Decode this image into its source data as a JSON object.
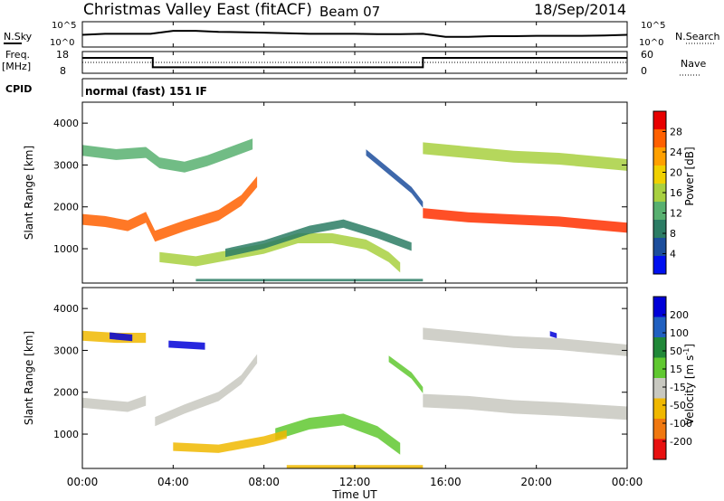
{
  "header": {
    "title": "Christmas Valley East (fitACF)",
    "beam": "Beam 07",
    "date": "18/Sep/2014"
  },
  "labels": {
    "nsky": "N.Sky",
    "nsearch": "N.Search",
    "freq": "Freq.",
    "freq_unit": "[MHz]",
    "nave": "Nave",
    "cpid": "CPID",
    "cpid_value": "normal (fast) 151 IF"
  },
  "chart_data": [
    {
      "type": "line",
      "name": "noise",
      "ylabel_left": "N.Sky",
      "ylabel_right": "N.Search",
      "yticks_left": [
        "10^5",
        "10^0"
      ],
      "yticks_right": [
        "10^5",
        "10^0"
      ],
      "x": [
        0,
        1,
        2,
        3,
        4,
        5,
        6,
        7,
        8,
        9,
        10,
        11,
        12,
        13,
        14,
        15,
        16,
        17,
        18,
        19,
        20,
        21,
        22,
        23,
        24
      ],
      "series": [
        {
          "name": "N.Sky",
          "values": [
            0.25,
            0.3,
            0.3,
            0.3,
            0.45,
            0.45,
            0.4,
            0.38,
            0.36,
            0.33,
            0.3,
            0.3,
            0.3,
            0.28,
            0.28,
            0.3,
            0.15,
            0.15,
            0.18,
            0.18,
            0.2,
            0.2,
            0.2,
            0.22,
            0.25
          ]
        }
      ]
    },
    {
      "type": "line",
      "name": "frequency",
      "ylabel_left": "Freq. [MHz]",
      "ylabel_right": "Nave",
      "yticks_left": [
        "18",
        "8"
      ],
      "yticks_right": [
        "60",
        "0"
      ],
      "series": [
        {
          "name": "Freq.",
          "steps": [
            [
              0,
              15.5
            ],
            [
              3.1,
              15.5
            ],
            [
              3.1,
              10.3
            ],
            [
              15.0,
              10.3
            ],
            [
              15.0,
              15.5
            ],
            [
              24,
              15.5
            ]
          ]
        },
        {
          "name": "Nave",
          "steps": [
            [
              0,
              30
            ],
            [
              24,
              30
            ]
          ]
        }
      ]
    },
    {
      "type": "heatmap",
      "name": "power",
      "ylabel": "Slant Range [km]",
      "ylim": [
        180,
        4500
      ],
      "yticks": [
        1000,
        2000,
        3000,
        4000
      ],
      "colorbar_label": "Power [dB]",
      "colorbar_ticks": [
        "28",
        "24",
        "20",
        "16",
        "12",
        "8",
        "4"
      ],
      "colorbar_colors": [
        "#e80000",
        "#ff6000",
        "#ffa000",
        "#f0d000",
        "#a8d040",
        "#58b070",
        "#2c7c64",
        "#1c4e9c",
        "#0010f0"
      ],
      "bands": [
        {
          "name": "lower-F-echoes",
          "pts": [
            [
              0,
              1700
            ],
            [
              1,
              1650
            ],
            [
              2,
              1550
            ],
            [
              2.8,
              1750
            ],
            [
              3.2,
              1300
            ],
            [
              4.5,
              1550
            ],
            [
              6,
              1800
            ],
            [
              7,
              2150
            ],
            [
              7.7,
              2600
            ]
          ],
          "thickness": 260,
          "color": "#ff6000"
        },
        {
          "name": "upper-F-echoes",
          "pts": [
            [
              0,
              3350
            ],
            [
              1.5,
              3250
            ],
            [
              2.8,
              3300
            ],
            [
              3.4,
              3050
            ],
            [
              4.5,
              2950
            ],
            [
              5.5,
              3100
            ],
            [
              6.5,
              3300
            ],
            [
              7.5,
              3500
            ]
          ],
          "thickness": 260,
          "color": "#58b070"
        },
        {
          "name": "near-echoes",
          "pts": [
            [
              3.4,
              800
            ],
            [
              5,
              700
            ],
            [
              6.5,
              850
            ],
            [
              8,
              1000
            ],
            [
              9.5,
              1250
            ],
            [
              11,
              1250
            ],
            [
              12.5,
              1100
            ],
            [
              13.5,
              800
            ],
            [
              14,
              550
            ]
          ],
          "thickness": 240,
          "color": "#a8d040"
        },
        {
          "name": "ionospheric-echoes",
          "pts": [
            [
              6.3,
              900
            ],
            [
              8,
              1100
            ],
            [
              10,
              1450
            ],
            [
              11.5,
              1600
            ],
            [
              13,
              1350
            ],
            [
              14.5,
              1050
            ]
          ],
          "thickness": 200,
          "color": "#2c7c64"
        },
        {
          "name": "descending-echoes",
          "pts": [
            [
              12.5,
              3300
            ],
            [
              13.5,
              2850
            ],
            [
              14.5,
              2400
            ],
            [
              15,
              2050
            ]
          ],
          "thickness": 150,
          "color": "#1c4e9c"
        },
        {
          "name": "late-lower-band",
          "pts": [
            [
              15,
              1850
            ],
            [
              17,
              1750
            ],
            [
              19,
              1700
            ],
            [
              21,
              1650
            ],
            [
              23,
              1550
            ],
            [
              24,
              1500
            ]
          ],
          "thickness": 240,
          "color": "#ff3000"
        },
        {
          "name": "late-upper-band",
          "pts": [
            [
              15,
              3400
            ],
            [
              17,
              3300
            ],
            [
              19,
              3200
            ],
            [
              21,
              3150
            ],
            [
              23,
              3050
            ],
            [
              24,
              3000
            ]
          ],
          "thickness": 280,
          "color": "#a8d040"
        },
        {
          "name": "ground-clutter",
          "pts": [
            [
              5,
              250
            ],
            [
              9,
              250
            ],
            [
              13,
              250
            ],
            [
              15,
              250
            ]
          ],
          "thickness": 60,
          "color": "#2c7c64"
        }
      ]
    },
    {
      "type": "heatmap",
      "name": "velocity",
      "ylabel": "Slant Range [km]",
      "ylim": [
        180,
        4500
      ],
      "yticks": [
        1000,
        2000,
        3000,
        4000
      ],
      "colorbar_label": "Velocity [m s^-1]",
      "colorbar_ticks": [
        "200",
        "100",
        "50",
        "15",
        "-15",
        "-50",
        "-100",
        "-200"
      ],
      "colorbar_colors": [
        "#0000d8",
        "#2060c0",
        "#208838",
        "#60c830",
        "#c8c8c0",
        "#f0b800",
        "#f07810",
        "#e81010"
      ],
      "bands": [
        {
          "name": "early-upper-band",
          "pts": [
            [
              0,
              3350
            ],
            [
              1.5,
              3300
            ],
            [
              2.8,
              3300
            ]
          ],
          "thickness": 240,
          "color": "#f0b800"
        },
        {
          "name": "blue-patch-1",
          "pts": [
            [
              1.2,
              3350
            ],
            [
              2.2,
              3300
            ]
          ],
          "thickness": 160,
          "color": "#0000d8"
        },
        {
          "name": "blue-patch-2",
          "pts": [
            [
              3.8,
              3150
            ],
            [
              5.4,
              3100
            ]
          ],
          "thickness": 170,
          "color": "#0000d8"
        },
        {
          "name": "early-lower-band",
          "pts": [
            [
              0,
              1750
            ],
            [
              1,
              1700
            ],
            [
              2,
              1650
            ],
            [
              2.8,
              1800
            ]
          ],
          "thickness": 240,
          "color": "#c8c8c0"
        },
        {
          "name": "diagonal-band",
          "pts": [
            [
              3.2,
              1300
            ],
            [
              4.5,
              1600
            ],
            [
              6,
              1900
            ],
            [
              7,
              2300
            ],
            [
              7.7,
              2800
            ]
          ],
          "thickness": 220,
          "color": "#c8c8c0"
        },
        {
          "name": "green-band",
          "pts": [
            [
              8.5,
              1000
            ],
            [
              10,
              1250
            ],
            [
              11.5,
              1350
            ],
            [
              13,
              1050
            ],
            [
              14,
              650
            ]
          ],
          "thickness": 280,
          "color": "#60c830"
        },
        {
          "name": "orange-band",
          "pts": [
            [
              4,
              700
            ],
            [
              6,
              650
            ],
            [
              8,
              850
            ],
            [
              9,
              1000
            ]
          ],
          "thickness": 200,
          "color": "#f0b800"
        },
        {
          "name": "descending-green",
          "pts": [
            [
              13.5,
              2800
            ],
            [
              14.5,
              2400
            ],
            [
              15,
              2050
            ]
          ],
          "thickness": 150,
          "color": "#60c830"
        },
        {
          "name": "late-lower-band",
          "pts": [
            [
              15,
              1800
            ],
            [
              17,
              1750
            ],
            [
              19,
              1650
            ],
            [
              21,
              1600
            ],
            [
              24,
              1500
            ]
          ],
          "thickness": 320,
          "color": "#c8c8c0"
        },
        {
          "name": "late-upper-band",
          "pts": [
            [
              15,
              3400
            ],
            [
              17,
              3300
            ],
            [
              19,
              3200
            ],
            [
              21,
              3150
            ],
            [
              24,
              3000
            ]
          ],
          "thickness": 280,
          "color": "#c8c8c0"
        },
        {
          "name": "blue-dot",
          "pts": [
            [
              20.6,
              3400
            ],
            [
              20.9,
              3350
            ]
          ],
          "thickness": 120,
          "color": "#0000d8"
        },
        {
          "name": "ground-clutter",
          "pts": [
            [
              9,
              220
            ],
            [
              13,
              220
            ],
            [
              15,
              220
            ]
          ],
          "thickness": 80,
          "color": "#f0b800"
        }
      ]
    }
  ],
  "xaxis": {
    "ticks": [
      "00:00",
      "04:00",
      "08:00",
      "12:00",
      "16:00",
      "20:00",
      "00:00"
    ],
    "label": "Time UT"
  }
}
